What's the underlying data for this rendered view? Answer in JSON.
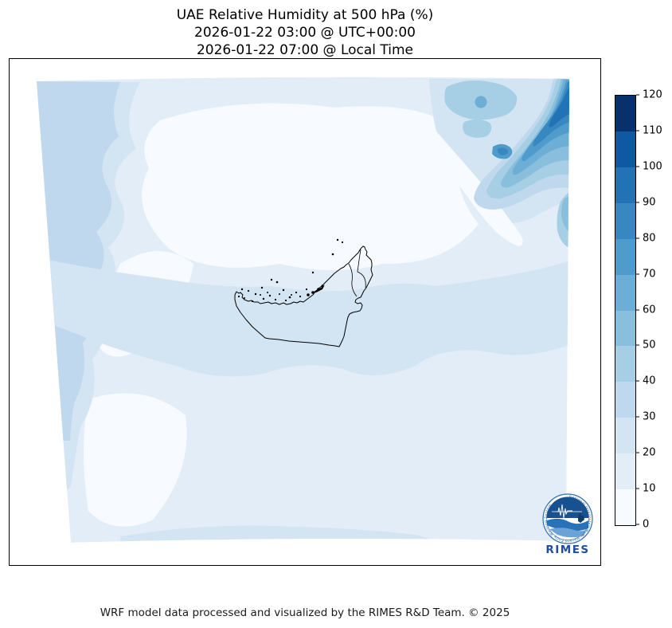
{
  "header": {
    "title": "UAE Relative Humidity at 500 hPa (%)",
    "subtitle_utc": "2026-01-22 03:00 @ UTC+00:00",
    "subtitle_local": "2026-01-22 07:00 @ Local Time"
  },
  "footer": {
    "credit": "WRF model data processed and visualized by the RIMES R&D Team. © 2025"
  },
  "logo": {
    "wordmark": "RIMES",
    "ring_text": "Regional Integrated Multi-Hazard Early Warning System",
    "wordmark_color": "#1f4e9c",
    "ring_color": "#2e6cb0"
  },
  "chart_data": {
    "type": "heatmap",
    "title": "UAE Relative Humidity at 500 hPa (%)",
    "variable": "Relative Humidity",
    "pressure_level_hPa": 500,
    "units": "%",
    "valid_time_utc": "2026-01-22 03:00 @ UTC+00:00",
    "valid_time_local": "2026-01-22 07:00 @ Local Time",
    "model": "WRF",
    "colormap": "Blues",
    "outline_color": "#000000",
    "colorbar": {
      "min": 0,
      "max": 120,
      "interval": 10,
      "ticks": [
        0,
        10,
        20,
        30,
        40,
        50,
        60,
        70,
        80,
        90,
        100,
        110,
        120
      ],
      "colors": [
        "#f7fbff",
        "#e2edf8",
        "#d3e4f3",
        "#bfd8ed",
        "#a6cee4",
        "#89bedc",
        "#6caed6",
        "#4f9bcb",
        "#3787c0",
        "#2272b6",
        "#0f59a3",
        "#08306b"
      ]
    },
    "observed_features": [
      {
        "region": "domain center and around UAE",
        "rh_percent": "0-20"
      },
      {
        "region": "western edge band",
        "rh_percent": "20-40"
      },
      {
        "region": "east-west belt south of UAE",
        "rh_percent": "20-30"
      },
      {
        "region": "northeast corner diagonal plume",
        "rh_percent": "50-100"
      }
    ]
  }
}
